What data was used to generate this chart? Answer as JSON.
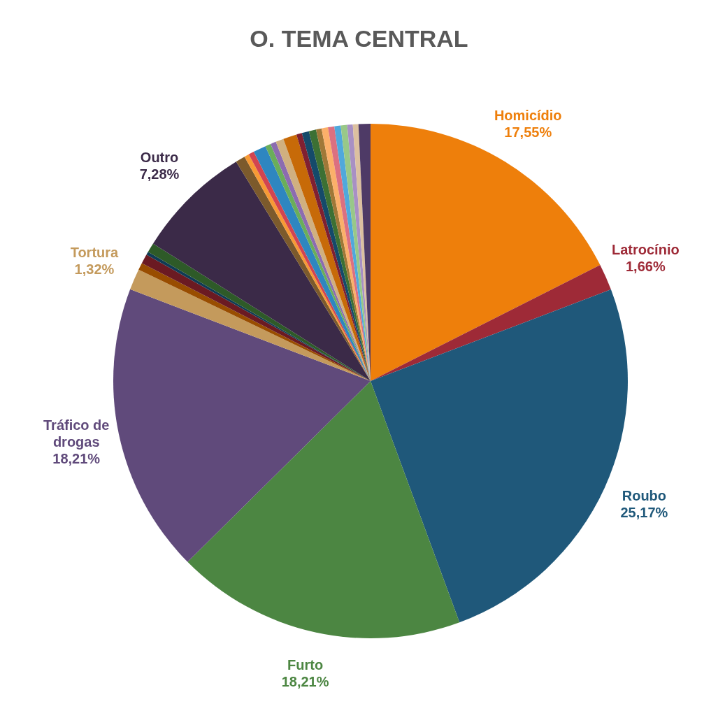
{
  "chart_data": {
    "type": "pie",
    "title": "O. TEMA CENTRAL",
    "categories": [
      "Homicídio",
      "Latrocínio",
      "Roubo",
      "Furto",
      "Tráfico de drogas",
      "Tortura",
      null,
      null,
      null,
      null,
      "Outro",
      null,
      null,
      null,
      null,
      null,
      null,
      null,
      null,
      null,
      null,
      null,
      null,
      null,
      null,
      null,
      null,
      null,
      null,
      null
    ],
    "values": [
      17.55,
      1.66,
      25.17,
      18.21,
      18.21,
      1.32,
      0.45,
      0.6,
      0.2,
      0.6,
      7.28,
      0.6,
      0.3,
      0.35,
      0.8,
      0.35,
      0.35,
      0.5,
      0.85,
      0.35,
      0.45,
      0.45,
      0.35,
      0.4,
      0.4,
      0.4,
      0.4,
      0.35,
      0.35,
      0.75
    ],
    "value_labels": [
      "17,55%",
      "1,66%",
      "25,17%",
      "18,21%",
      "18,21%",
      "1,32%",
      null,
      null,
      null,
      null,
      "7,28%",
      null,
      null,
      null,
      null,
      null,
      null,
      null,
      null,
      null,
      null,
      null,
      null,
      null,
      null,
      null,
      null,
      null,
      null,
      null
    ],
    "colors": [
      "#ee7f0b",
      "#9e2a37",
      "#1f587a",
      "#4c8642",
      "#604a7b",
      "#c49a5c",
      "#994d00",
      "#6b1a22",
      "#0f3b55",
      "#2e5a28",
      "#3b2a48",
      "#7c5a2c",
      "#f79a35",
      "#d24550",
      "#2e86c0",
      "#6aae5a",
      "#8c6cb0",
      "#d0b080",
      "#c76a08",
      "#802030",
      "#154a6a",
      "#3c7034",
      "#a07838",
      "#fbb06a",
      "#dc7080",
      "#50a8dc",
      "#98c888",
      "#a890c4",
      "#dcc0a0",
      "#4e3a66"
    ]
  }
}
